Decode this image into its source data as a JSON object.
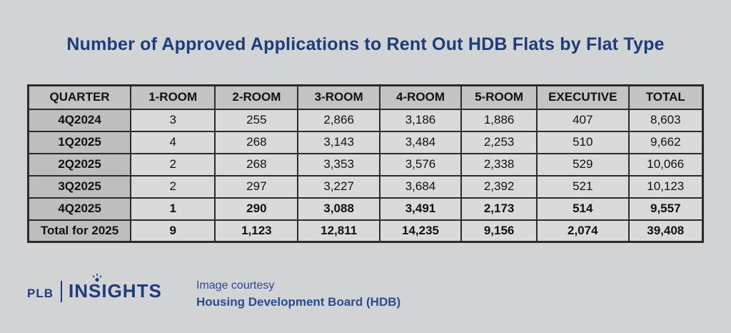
{
  "title": "Number of Approved Applications to Rent Out HDB Flats by Flat Type",
  "table": {
    "columns": [
      "QUARTER",
      "1-ROOM",
      "2-ROOM",
      "3-ROOM",
      "4-ROOM",
      "5-ROOM",
      "EXECUTIVE",
      "TOTAL"
    ],
    "rows": [
      {
        "label": "4Q2024",
        "values": [
          "3",
          "255",
          "2,866",
          "3,186",
          "1,886",
          "407",
          "8,603"
        ],
        "bold": false
      },
      {
        "label": "1Q2025",
        "values": [
          "4",
          "268",
          "3,143",
          "3,484",
          "2,253",
          "510",
          "9,662"
        ],
        "bold": false
      },
      {
        "label": "2Q2025",
        "values": [
          "2",
          "268",
          "3,353",
          "3,576",
          "2,338",
          "529",
          "10,066"
        ],
        "bold": false
      },
      {
        "label": "3Q2025",
        "values": [
          "2",
          "297",
          "3,227",
          "3,684",
          "2,392",
          "521",
          "10,123"
        ],
        "bold": false
      },
      {
        "label": "4Q2025",
        "values": [
          "1",
          "290",
          "3,088",
          "3,491",
          "2,173",
          "514",
          "9,557"
        ],
        "bold": true
      },
      {
        "label": "Total for 2025",
        "values": [
          "9",
          "1,123",
          "12,811",
          "14,235",
          "9,156",
          "2,074",
          "39,408"
        ],
        "bold": true
      }
    ]
  },
  "chart_data": {
    "type": "table",
    "title": "Number of Approved Applications to Rent Out HDB Flats by Flat Type",
    "columns": [
      "QUARTER",
      "1-ROOM",
      "2-ROOM",
      "3-ROOM",
      "4-ROOM",
      "5-ROOM",
      "EXECUTIVE",
      "TOTAL"
    ],
    "rows": [
      [
        "4Q2024",
        3,
        255,
        2866,
        3186,
        1886,
        407,
        8603
      ],
      [
        "1Q2025",
        4,
        268,
        3143,
        3484,
        2253,
        510,
        9662
      ],
      [
        "2Q2025",
        2,
        268,
        3353,
        3576,
        2338,
        529,
        10066
      ],
      [
        "3Q2025",
        2,
        297,
        3227,
        3684,
        2392,
        521,
        10123
      ],
      [
        "4Q2025",
        1,
        290,
        3088,
        3491,
        2173,
        514,
        9557
      ],
      [
        "Total for 2025",
        9,
        1123,
        12811,
        14235,
        9156,
        2074,
        39408
      ]
    ]
  },
  "footer": {
    "logo_plb": "PLB",
    "logo_insights": "INSIGHTS",
    "credit_line1": "Image courtesy",
    "credit_line2": "Housing Development Board (HDB)"
  },
  "colors": {
    "background": "#d2d3d5",
    "title_navy": "#1d3c7c",
    "credit_blue": "#2b4a93",
    "header_gray": "#c2c3c2",
    "label_gray": "#bdbebd",
    "cell_gray": "#d9dad9",
    "border_dark": "#2b2b2b"
  },
  "column_widths_pct": [
    15.2,
    12.5,
    12.3,
    12.1,
    12.1,
    11.2,
    13.6,
    11.0
  ]
}
